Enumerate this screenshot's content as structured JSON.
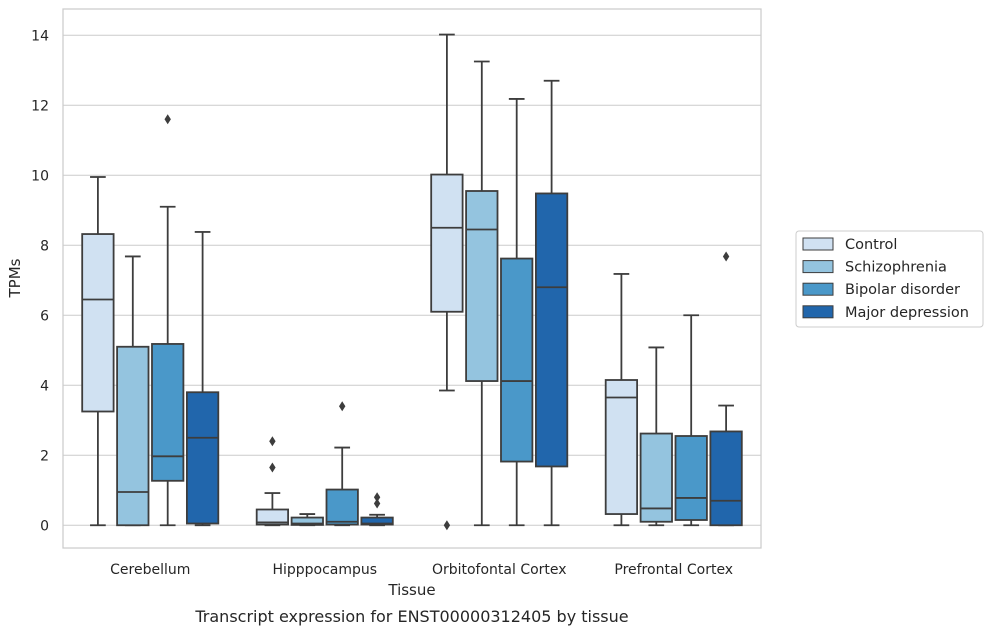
{
  "caption": "Transcript expression for ENST00000312405 by tissue",
  "chart_data": {
    "type": "box",
    "xlabel": "Tissue",
    "ylabel": "TPMs",
    "ylim": [
      -0.65,
      14.75
    ],
    "yticks": [
      0,
      2,
      4,
      6,
      8,
      10,
      12,
      14
    ],
    "grid": "horizontal",
    "legend_position": "right",
    "categories": [
      "Cerebellum",
      "Hipppocampus",
      "Orbitofontal Cortex",
      "Prefrontal Cortex"
    ],
    "series": [
      {
        "name": "Control",
        "color": "#d0e1f2",
        "boxes": [
          {
            "whislo": 0.0,
            "q1": 3.25,
            "med": 6.45,
            "q3": 8.32,
            "whishi": 9.95,
            "fliers": []
          },
          {
            "whislo": 0.0,
            "q1": 0.02,
            "med": 0.08,
            "q3": 0.45,
            "whishi": 0.92,
            "fliers": [
              1.65,
              2.4
            ]
          },
          {
            "whislo": 3.85,
            "q1": 6.1,
            "med": 8.5,
            "q3": 10.02,
            "whishi": 14.02,
            "fliers": [
              0.0
            ]
          },
          {
            "whislo": 0.0,
            "q1": 0.32,
            "med": 3.65,
            "q3": 4.15,
            "whishi": 7.18,
            "fliers": []
          }
        ]
      },
      {
        "name": "Schizophrenia",
        "color": "#94c4df",
        "boxes": [
          {
            "whislo": 0.0,
            "q1": 0.0,
            "med": 0.95,
            "q3": 5.1,
            "whishi": 7.68,
            "fliers": []
          },
          {
            "whislo": 0.0,
            "q1": 0.01,
            "med": 0.05,
            "q3": 0.22,
            "whishi": 0.32,
            "fliers": []
          },
          {
            "whislo": 0.0,
            "q1": 4.12,
            "med": 8.45,
            "q3": 9.55,
            "whishi": 13.25,
            "fliers": []
          },
          {
            "whislo": 0.0,
            "q1": 0.1,
            "med": 0.48,
            "q3": 2.62,
            "whishi": 5.08,
            "fliers": []
          }
        ]
      },
      {
        "name": "Bipolar disorder",
        "color": "#4a98c9",
        "boxes": [
          {
            "whislo": 0.0,
            "q1": 1.27,
            "med": 1.97,
            "q3": 5.18,
            "whishi": 9.1,
            "fliers": [
              11.6
            ]
          },
          {
            "whislo": 0.0,
            "q1": 0.02,
            "med": 0.1,
            "q3": 1.02,
            "whishi": 2.22,
            "fliers": [
              3.4
            ]
          },
          {
            "whislo": 0.0,
            "q1": 1.82,
            "med": 4.12,
            "q3": 7.62,
            "whishi": 12.18,
            "fliers": []
          },
          {
            "whislo": 0.0,
            "q1": 0.15,
            "med": 0.78,
            "q3": 2.55,
            "whishi": 6.0,
            "fliers": []
          }
        ]
      },
      {
        "name": "Major depression",
        "color": "#2166ac",
        "boxes": [
          {
            "whislo": 0.0,
            "q1": 0.05,
            "med": 2.5,
            "q3": 3.8,
            "whishi": 8.38,
            "fliers": []
          },
          {
            "whislo": 0.0,
            "q1": 0.02,
            "med": 0.05,
            "q3": 0.22,
            "whishi": 0.3,
            "fliers": [
              0.62,
              0.8
            ]
          },
          {
            "whislo": 0.0,
            "q1": 1.68,
            "med": 6.8,
            "q3": 9.48,
            "whishi": 12.7,
            "fliers": []
          },
          {
            "whislo": 0.0,
            "q1": 0.0,
            "med": 0.7,
            "q3": 2.68,
            "whishi": 3.42,
            "fliers": [
              7.68
            ]
          }
        ]
      }
    ]
  }
}
